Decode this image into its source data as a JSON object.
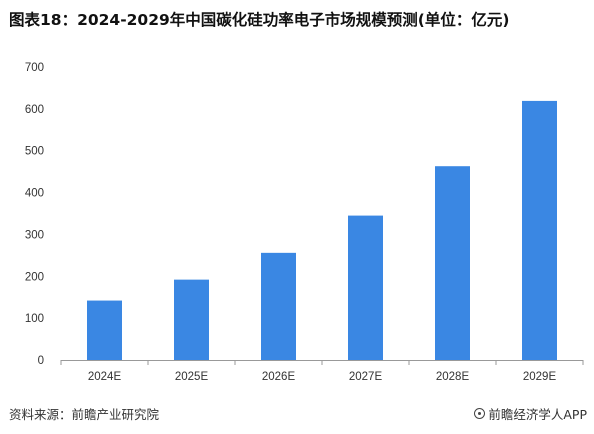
{
  "title": "图表18：2024-2029年中国碳化硅功率电子市场规模预测(单位：亿元)",
  "footer": {
    "source": "资料来源：前瞻产业研究院",
    "brand": "前瞻经济学人APP",
    "brand_icon": "circle-logo-icon"
  },
  "colors": {
    "bar": "#3a87e3",
    "axis": "#999999",
    "tick_text": "#333333"
  },
  "chart_data": {
    "type": "bar",
    "title": "图表18：2024-2029年中国碳化硅功率电子市场规模预测(单位：亿元)",
    "categories": [
      "2024E",
      "2025E",
      "2026E",
      "2027E",
      "2028E",
      "2029E"
    ],
    "values": [
      142,
      192,
      256,
      345,
      463,
      619
    ],
    "ylim": [
      0,
      700
    ],
    "yticks": [
      0,
      100,
      200,
      300,
      400,
      500,
      600,
      700
    ],
    "grid": false,
    "legend": "none"
  }
}
